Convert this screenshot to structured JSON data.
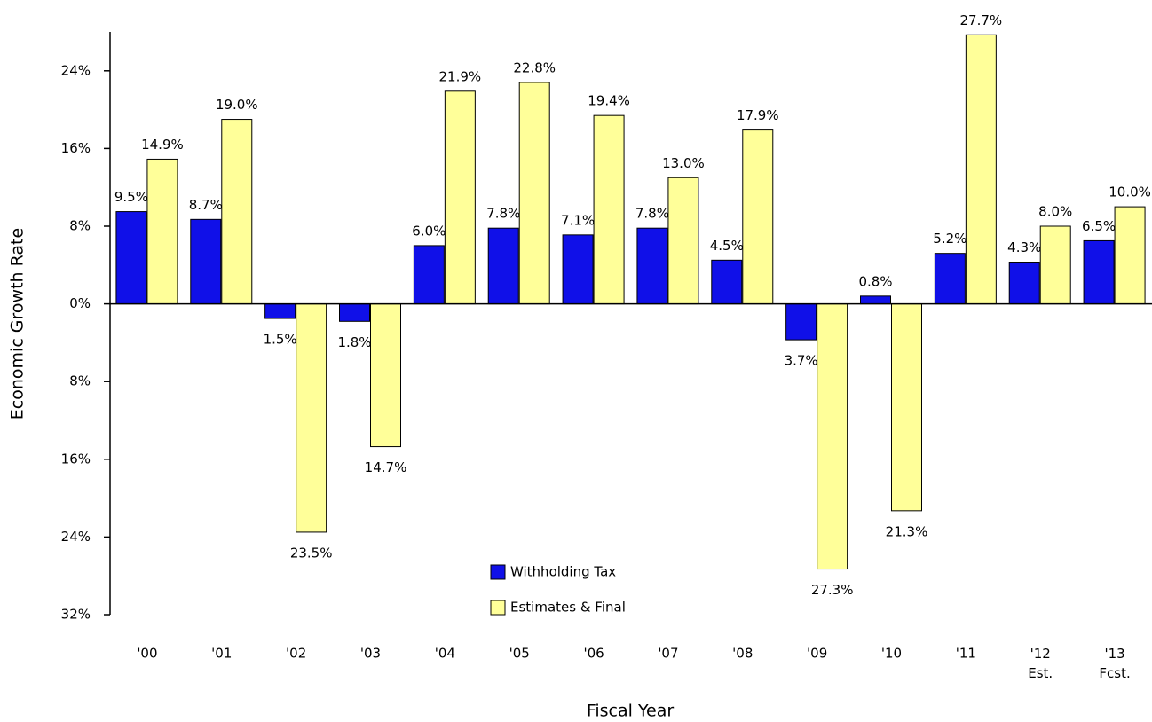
{
  "chart_data": {
    "type": "bar",
    "x_label": "Fiscal Year",
    "y_label": "Economic Growth Rate",
    "categories": [
      "'00",
      "'01",
      "'02",
      "'03",
      "'04",
      "'05",
      "'06",
      "'07",
      "'08",
      "'09",
      "'10",
      "'11",
      "'12\nEst.",
      "'13\nFcst."
    ],
    "series": [
      {
        "name": "Withholding Tax",
        "color": "#1010e8",
        "values": [
          9.5,
          8.7,
          -1.5,
          -1.8,
          6.0,
          7.8,
          7.1,
          7.8,
          4.5,
          -3.7,
          0.8,
          5.2,
          4.3,
          6.5
        ],
        "value_labels": [
          "9.5%",
          "8.7%",
          "1.5%",
          "1.8%",
          "6.0%",
          "7.8%",
          "7.1%",
          "7.8%",
          "4.5%",
          "3.7%",
          "0.8%",
          "5.2%",
          "4.3%",
          "6.5%"
        ]
      },
      {
        "name": "Estimates & Final",
        "color": "#ffff99",
        "values": [
          14.9,
          19.0,
          -23.5,
          -14.7,
          21.9,
          22.8,
          19.4,
          13.0,
          17.9,
          -27.3,
          -21.3,
          27.7,
          8.0,
          10.0
        ],
        "value_labels": [
          "14.9%",
          "19.0%",
          "23.5%",
          "14.7%",
          "21.9%",
          "22.8%",
          "19.4%",
          "13.0%",
          "17.9%",
          "27.3%",
          "21.3%",
          "27.7%",
          "8.0%",
          "10.0%"
        ]
      }
    ],
    "ylim": [
      -32,
      28
    ],
    "yticks": [
      {
        "value": 24,
        "label": "24%"
      },
      {
        "value": 16,
        "label": "16%"
      },
      {
        "value": 8,
        "label": "8%"
      },
      {
        "value": 0,
        "label": "0%"
      },
      {
        "value": -8,
        "label": "8%"
      },
      {
        "value": -16,
        "label": "16%"
      },
      {
        "value": -24,
        "label": "24%"
      },
      {
        "value": -32,
        "label": "32%"
      }
    ],
    "legend": "bottom-center"
  }
}
